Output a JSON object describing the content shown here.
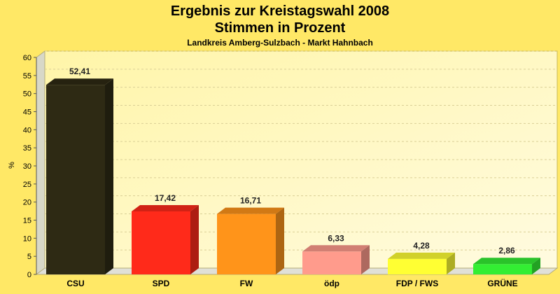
{
  "chart_data": {
    "type": "bar",
    "title": "Ergebnis zur Kreistagswahl 2008",
    "title_line2": "Stimmen in Prozent",
    "subtitle": "Landkreis Amberg-Sulzbach - Markt Hahnbach",
    "xlabel": "",
    "ylabel": "%",
    "ylim": [
      0,
      60
    ],
    "yticks": [
      0,
      5,
      10,
      15,
      20,
      25,
      30,
      35,
      40,
      45,
      50,
      55,
      60
    ],
    "grid": true,
    "categories": [
      "CSU",
      "SPD",
      "FW",
      "ödp",
      "FDP / FWS",
      "GRÜNE"
    ],
    "values": [
      52.41,
      17.42,
      16.71,
      6.33,
      4.28,
      2.86
    ],
    "value_labels": [
      "52,41",
      "17,42",
      "16,71",
      "6,33",
      "4,28",
      "2,86"
    ],
    "colors": [
      "#2e2a14",
      "#ff2a1a",
      "#ff941a",
      "#ff9b8c",
      "#ffff33",
      "#33ee33"
    ]
  }
}
